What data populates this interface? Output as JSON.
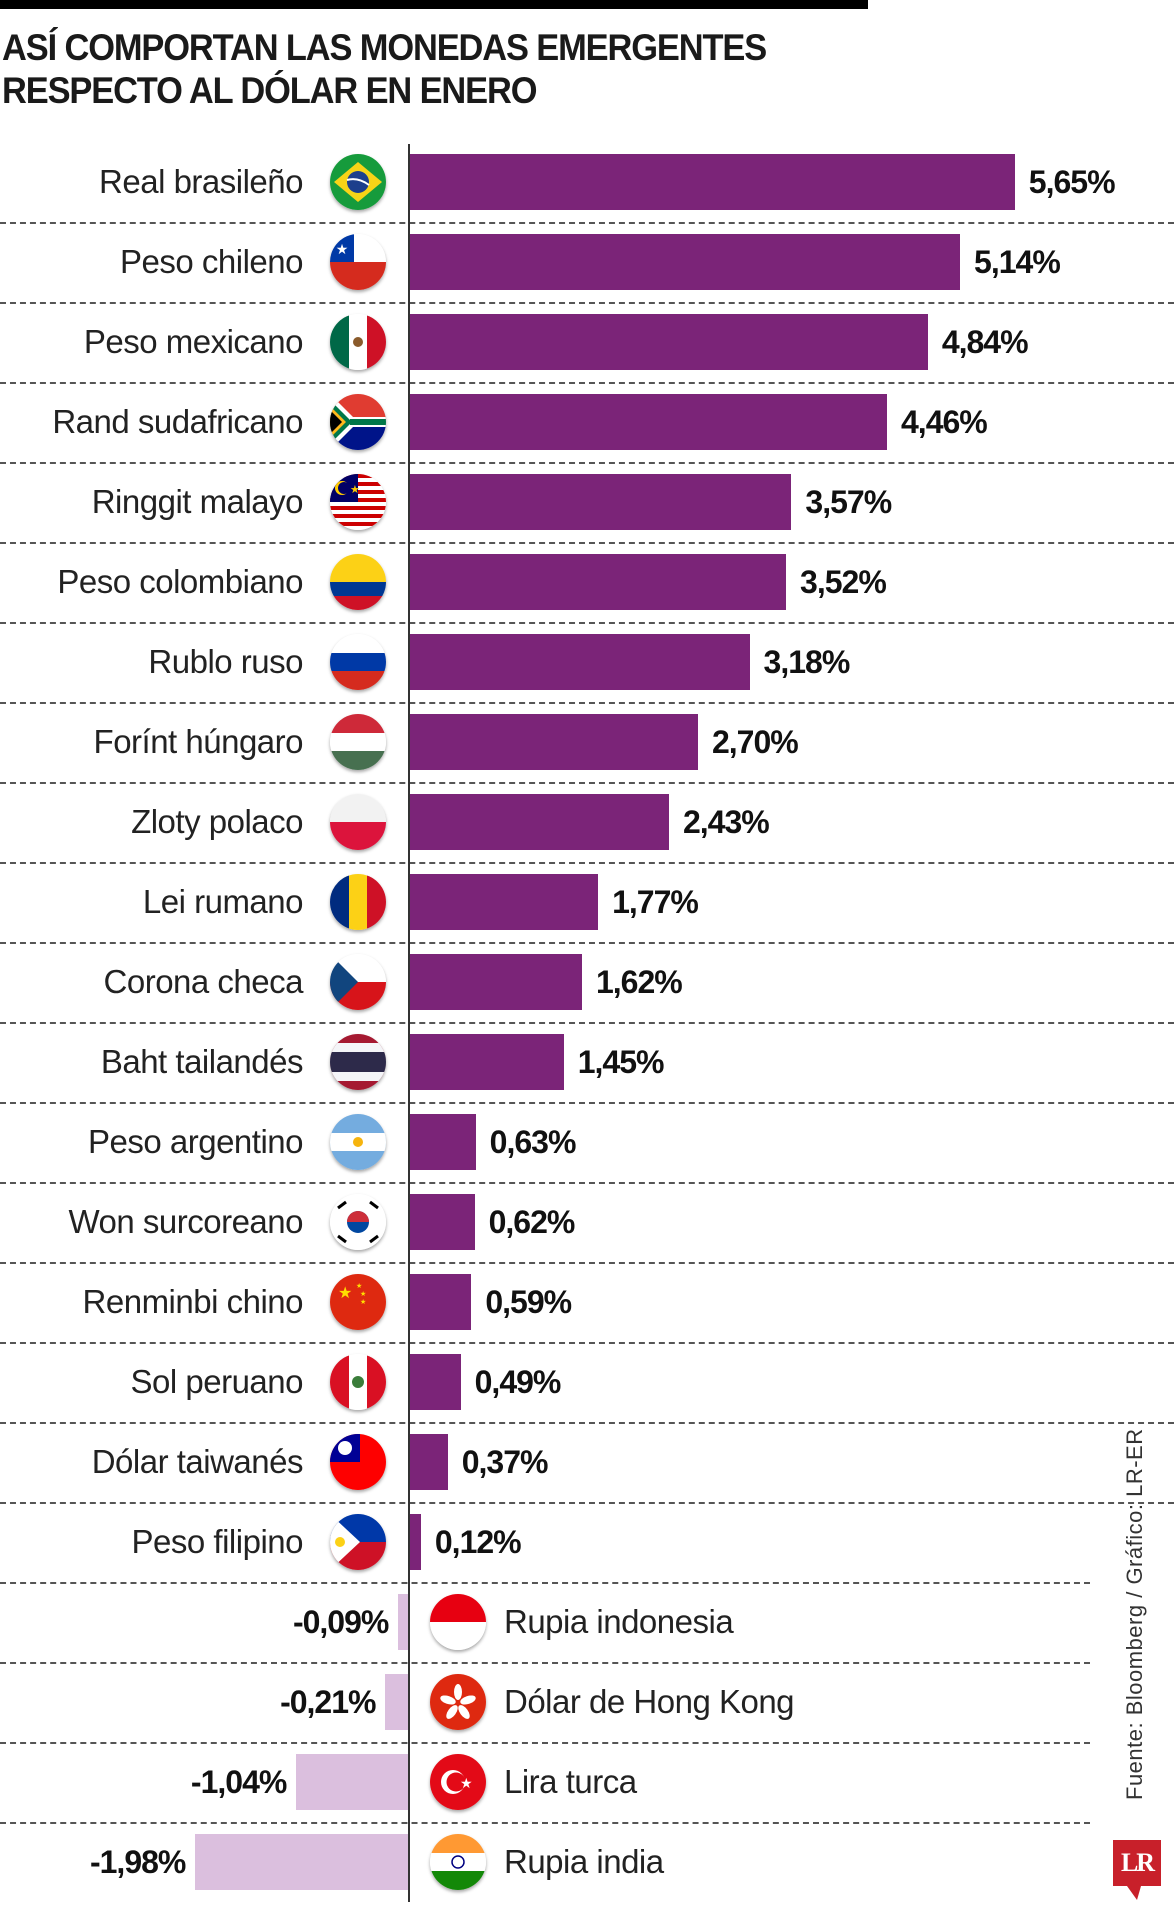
{
  "title_line1": "ASÍ COMPORTAN LAS MONEDAS EMERGENTES",
  "title_line2": "RESPECTO AL DÓLAR EN ENERO",
  "source": "Fuente: Bloomberg / Gráfico: LR-ER",
  "logo": "LR",
  "colors": {
    "positive": "#7b2478",
    "negative": "#dbbfde",
    "logo": "#c8202a"
  },
  "chart_data": {
    "type": "bar",
    "orientation": "horizontal",
    "unit": "%",
    "grid": "dashed row separators",
    "categories": [
      "Real brasileño",
      "Peso chileno",
      "Peso mexicano",
      "Rand sudafricano",
      "Ringgit malayo",
      "Peso colombiano",
      "Rublo ruso",
      "Forínt húngaro",
      "Zloty polaco",
      "Lei rumano",
      "Corona checa",
      "Baht tailandés",
      "Peso argentino",
      "Won surcoreano",
      "Renminbi chino",
      "Sol peruano",
      "Dólar taiwanés",
      "Peso filipino",
      "Rupia indonesia",
      "Dólar de Hong Kong",
      "Lira turca",
      "Rupia india"
    ],
    "values": [
      5.65,
      5.14,
      4.84,
      4.46,
      3.57,
      3.52,
      3.18,
      2.7,
      2.43,
      1.77,
      1.62,
      1.45,
      0.63,
      0.62,
      0.59,
      0.49,
      0.37,
      0.12,
      -0.09,
      -0.21,
      -1.04,
      -1.98
    ],
    "data_labels": [
      "5,65%",
      "5,14%",
      "4,84%",
      "4,46%",
      "3,57%",
      "3,52%",
      "3,18%",
      "2,70%",
      "2,43%",
      "1,77%",
      "1,62%",
      "1,45%",
      "0,63%",
      "0,62%",
      "0,59%",
      "0,49%",
      "0,37%",
      "0,12%",
      "-0,09%",
      "-0,21%",
      "-1,04%",
      "-1,98%"
    ],
    "flags": [
      "flag-brazil",
      "flag-chile",
      "flag-mexico",
      "flag-south-africa",
      "flag-malaysia",
      "flag-colombia",
      "flag-russia",
      "flag-hungary",
      "flag-poland",
      "flag-romania",
      "flag-czechia",
      "flag-thailand",
      "flag-argentina",
      "flag-south-korea",
      "flag-china",
      "flag-peru",
      "flag-taiwan",
      "flag-philippines",
      "flag-indonesia",
      "flag-hong-kong",
      "flag-turkey",
      "flag-india"
    ]
  }
}
